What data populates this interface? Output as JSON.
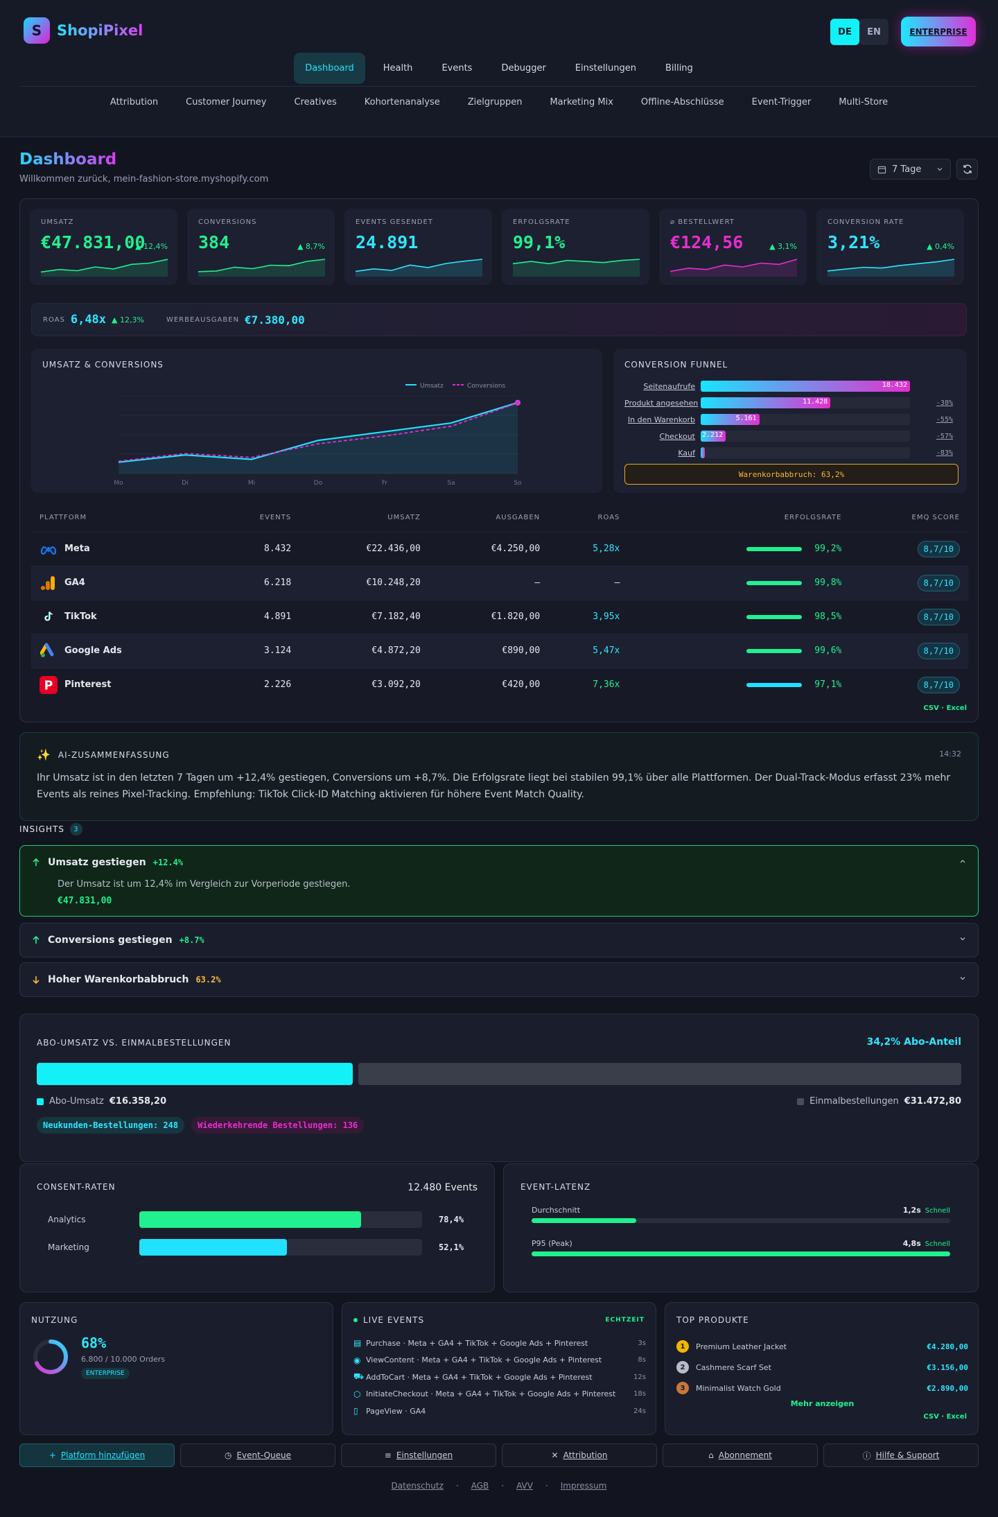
{
  "brand": {
    "name": "ShopiPixel",
    "logo_letter": "S"
  },
  "lang": {
    "de": "DE",
    "en": "EN"
  },
  "header": {
    "enterprise_label": "ENTERPRISE"
  },
  "nav_primary": [
    "Dashboard",
    "Health",
    "Events",
    "Debugger",
    "Einstellungen",
    "Billing"
  ],
  "nav_secondary": [
    "Attribution",
    "Customer Journey",
    "Creatives",
    "Kohortenanalyse",
    "Zielgruppen",
    "Marketing Mix",
    "Offline-Abschlüsse",
    "Event-Trigger",
    "Multi-Store"
  ],
  "page": {
    "title": "Dashboard",
    "welcome": "Willkommen zurück, mein-fashion-store.myshopify.com",
    "range": "7 Tage"
  },
  "kpis": [
    {
      "label": "UMSATZ",
      "value": "€47.831,00",
      "delta": "12,4%",
      "color": "#21f08f",
      "spark": [
        3,
        4,
        3.5,
        5,
        4.2,
        6,
        6.5,
        8
      ]
    },
    {
      "label": "CONVERSIONS",
      "value": "384",
      "delta": "8,7%",
      "color": "#21f08f",
      "spark": [
        3,
        3.2,
        4.5,
        4,
        5.2,
        5,
        6.5,
        7.2
      ]
    },
    {
      "label": "EVENTS GESENDET",
      "value": "24.891",
      "delta": "",
      "color": "#2fe6ff",
      "spark": [
        3,
        3.8,
        3.3,
        5,
        4.2,
        5.5,
        6.2,
        6.8
      ]
    },
    {
      "label": "ERFOLGSRATE",
      "value": "99,1%",
      "delta": "",
      "color": "#21f08f",
      "spark": [
        5,
        5.2,
        5,
        5.3,
        5.2,
        5.1,
        5.3,
        5.4
      ]
    },
    {
      "label": "⌀ BESTELLWERT",
      "value": "€124,56",
      "delta": "3,1%",
      "color": "#e52ed0",
      "spark": [
        3,
        4,
        3.6,
        5,
        4.4,
        5.6,
        5.2,
        6.8
      ]
    },
    {
      "label": "CONVERSION RATE",
      "value": "3,21%",
      "delta": "0,4%",
      "color": "#2fe6ff",
      "spark": [
        3,
        3.5,
        4,
        3.8,
        4.5,
        5,
        5.5,
        6.2
      ]
    }
  ],
  "roas": {
    "label": "ROAS",
    "value": "6,48x",
    "delta": "12,3%",
    "spend_label": "WERBEAUSGABEN",
    "spend_value": "€7.380,00"
  },
  "chart": {
    "title": "UMSATZ & CONVERSIONS",
    "legend_umsatz": "Umsatz",
    "legend_conversions": "Conversions",
    "days": [
      "Mo",
      "Di",
      "Mi",
      "Do",
      "Fr",
      "Sa",
      "So"
    ]
  },
  "chart_data": {
    "type": "line",
    "x": [
      "Mo",
      "Di",
      "Mi",
      "Do",
      "Fr",
      "Sa",
      "So"
    ],
    "series": [
      {
        "name": "Umsatz",
        "values": [
          5200,
          5700,
          5400,
          6700,
          7300,
          7900,
          9300
        ],
        "color": "#22e0ff"
      },
      {
        "name": "Conversions",
        "values": [
          42,
          46,
          44,
          51,
          55,
          60,
          72
        ],
        "color": "#e52ed0"
      }
    ]
  },
  "funnel": {
    "title": "CONVERSION FUNNEL",
    "steps": [
      {
        "label": "Seitenaufrufe",
        "value": "18.432",
        "drop": "",
        "pct": 100
      },
      {
        "label": "Produkt angesehen",
        "value": "11.428",
        "drop": "-38%",
        "pct": 62
      },
      {
        "label": "In den Warenkorb",
        "value": "5.161",
        "drop": "-55%",
        "pct": 28
      },
      {
        "label": "Checkout",
        "value": "2.212",
        "drop": "-57%",
        "pct": 12
      },
      {
        "label": "Kauf",
        "value": "",
        "drop": "-83%",
        "pct": 2
      }
    ],
    "abandon": "Warenkorbabbruch: 63,2%"
  },
  "table": {
    "headers": [
      "PLATTFORM",
      "EVENTS",
      "UMSATZ",
      "AUSGABEN",
      "ROAS",
      "ERFOLGSRATE",
      "EMQ SCORE"
    ],
    "rows": [
      {
        "name": "Meta",
        "events": "8.432",
        "revenue": "€22.436,00",
        "spend": "€4.250,00",
        "roas": "5,28x",
        "rate": "99,2%",
        "emq": "8,7/10",
        "icon": "meta-icon",
        "roas_color": "#2fe6ff",
        "bar": "#21f08f"
      },
      {
        "name": "GA4",
        "events": "6.218",
        "revenue": "€10.248,20",
        "spend": "—",
        "roas": "—",
        "rate": "99,8%",
        "emq": "8,7/10",
        "icon": "ga4-icon",
        "roas_color": "#e6e8ef",
        "bar": "#21f08f"
      },
      {
        "name": "TikTok",
        "events": "4.891",
        "revenue": "€7.182,40",
        "spend": "€1.820,00",
        "roas": "3,95x",
        "rate": "98,5%",
        "emq": "8,7/10",
        "icon": "tiktok-icon",
        "roas_color": "#2fe6ff",
        "bar": "#21f08f"
      },
      {
        "name": "Google Ads",
        "events": "3.124",
        "revenue": "€4.872,20",
        "spend": "€890,00",
        "roas": "5,47x",
        "rate": "99,6%",
        "emq": "8,7/10",
        "icon": "google-ads-icon",
        "roas_color": "#2fe6ff",
        "bar": "#21f08f"
      },
      {
        "name": "Pinterest",
        "events": "2.226",
        "revenue": "€3.092,20",
        "spend": "€420,00",
        "roas": "7,36x",
        "rate": "97,1%",
        "emq": "8,7/10",
        "icon": "pinterest-icon",
        "roas_color": "#21f08f",
        "bar": "#22e0ff"
      }
    ],
    "export": "CSV · Excel"
  },
  "ai": {
    "title": "AI-ZUSAMMENFASSUNG",
    "time": "14:32",
    "text": "Ihr Umsatz ist in den letzten 7 Tagen um +12,4% gestiegen, Conversions um +8,7%. Die Erfolgsrate liegt bei stabilen 99,1% über alle Plattformen. Der Dual-Track-Modus erfasst 23% mehr Events als reines Pixel-Tracking. Empfehlung: TikTok Click-ID Matching aktivieren für höhere Event Match Quality."
  },
  "insights": {
    "title": "INSIGHTS",
    "count": "3",
    "items": [
      {
        "title": "Umsatz gestiegen",
        "delta": "+12.4%",
        "text": "Der Umsatz ist um 12,4% im Vergleich zur Vorperiode gestiegen.",
        "value": "€47.831,00"
      },
      {
        "title": "Conversions gestiegen",
        "delta": "+8.7%"
      },
      {
        "title": "Hoher Warenkorbabbruch",
        "delta": "63.2%"
      }
    ]
  },
  "abo": {
    "title": "ABO-UMSATZ VS. EINMALBESTELLUNGEN",
    "share": "34,2% Abo-Anteil",
    "share_pct": 34.2,
    "abo_label": "Abo-Umsatz",
    "abo_value": "€16.358,20",
    "one_label": "Einmalbestellungen",
    "one_value": "€31.472,80",
    "new_orders": "Neukunden-Bestellungen: 248",
    "recurring": "Wiederkehrende Bestellungen: 136"
  },
  "consent": {
    "title": "CONSENT-RATEN",
    "events": "12.480 Events",
    "items": [
      {
        "label": "Analytics",
        "value": "78,4%",
        "pct": 78.4,
        "color": "#21f08f"
      },
      {
        "label": "Marketing",
        "value": "52,1%",
        "pct": 52.1,
        "color": "#22e0ff"
      }
    ]
  },
  "latency": {
    "title": "EVENT-LATENZ",
    "items": [
      {
        "label": "Durchschnitt",
        "value": "1,2s",
        "status": "Schnell",
        "pct": 25
      },
      {
        "label": "P95 (Peak)",
        "value": "4,8s",
        "status": "Schnell",
        "pct": 100
      }
    ]
  },
  "usage": {
    "title": "NUTZUNG",
    "pct": "68%",
    "pct_num": 68,
    "orders": "6.800 / 10.000 Orders",
    "plan": "ENTERPRISE"
  },
  "live": {
    "title": "LIVE EVENTS",
    "badge": "ECHTZEIT",
    "items": [
      {
        "text": "Purchase · Meta + GA4 + TikTok + Google Ads + Pinterest",
        "time": "3s",
        "icon": "receipt-icon"
      },
      {
        "text": "ViewContent · Meta + GA4 + TikTok + Google Ads + Pinterest",
        "time": "8s",
        "icon": "eye-icon"
      },
      {
        "text": "AddToCart · Meta + GA4 + TikTok + Google Ads + Pinterest",
        "time": "12s",
        "icon": "cart-icon"
      },
      {
        "text": "InitiateCheckout · Meta + GA4 + TikTok + Google Ads + Pinterest",
        "time": "18s",
        "icon": "box-icon"
      },
      {
        "text": "PageView · GA4",
        "time": "24s",
        "icon": "page-icon"
      }
    ]
  },
  "top": {
    "title": "TOP PRODUKTE",
    "items": [
      {
        "rank": "1",
        "name": "Premium Leather Jacket",
        "value": "€4.280,00",
        "color": "#f5b400"
      },
      {
        "rank": "2",
        "name": "Cashmere Scarf Set",
        "value": "€3.156,00",
        "color": "#b8bcc6"
      },
      {
        "rank": "3",
        "name": "Minimalist Watch Gold",
        "value": "€2.890,00",
        "color": "#c9773a"
      }
    ],
    "more": "Mehr anzeigen",
    "export": "CSV · Excel"
  },
  "actions": [
    "Platform hinzufügen",
    "Event-Queue",
    "Einstellungen",
    "Attribution",
    "Abonnement",
    "Hilfe & Support"
  ],
  "footer": [
    "Datenschutz",
    "AGB",
    "AVV",
    "Impressum"
  ]
}
